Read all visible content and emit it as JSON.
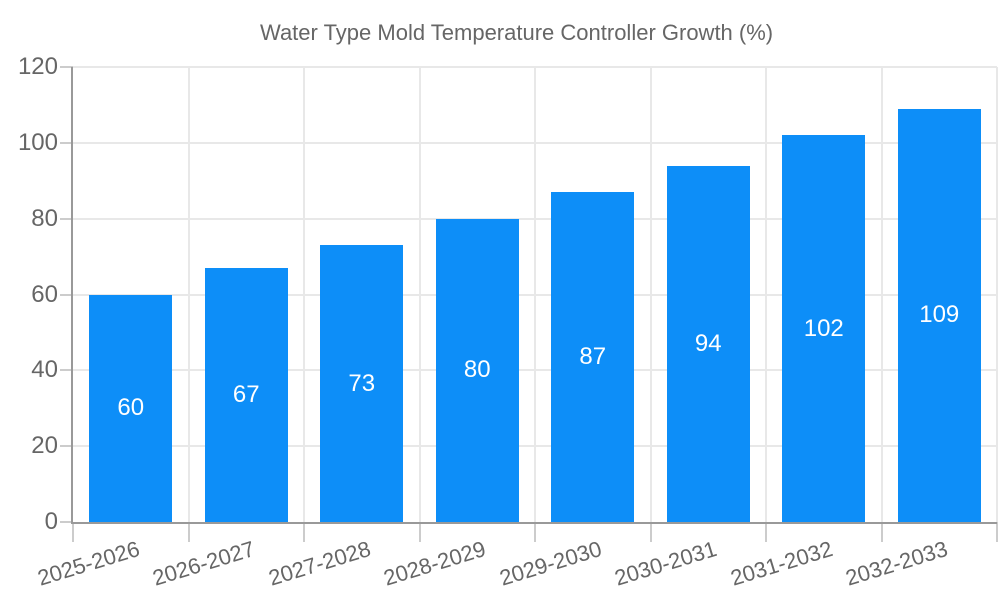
{
  "legend": {
    "label": "Water Type Mold Temperature Controller Growth (%)"
  },
  "chart_data": {
    "type": "bar",
    "title": "Water Type Mold Temperature Controller Growth (%)",
    "categories": [
      "2025-2026",
      "2026-2027",
      "2027-2028",
      "2028-2029",
      "2029-2030",
      "2030-2031",
      "2031-2032",
      "2032-2033"
    ],
    "values": [
      60,
      67,
      73,
      80,
      87,
      94,
      102,
      109
    ],
    "xlabel": "",
    "ylabel": "",
    "ylim": [
      0,
      120
    ],
    "yticks": [
      0,
      20,
      40,
      60,
      80,
      100,
      120
    ],
    "grid": true,
    "legend_position": "top",
    "bar_color": "#0d8ef8",
    "bar_label_color": "#ffffff",
    "axis_text_color": "#666666",
    "grid_color": "#e8e8e8",
    "axis_line_color": "#999999"
  }
}
